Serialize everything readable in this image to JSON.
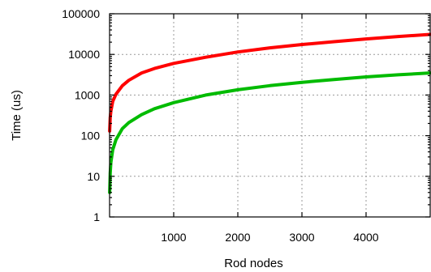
{
  "chart_data": {
    "type": "line",
    "title": "",
    "xlabel": "Rod nodes",
    "ylabel": "Time (us)",
    "xlim": [
      0,
      5000
    ],
    "ylim": [
      1,
      100000
    ],
    "yscale": "log",
    "grid": true,
    "legend": "none",
    "x_ticks": [
      1000,
      2000,
      3000,
      4000
    ],
    "x_tick_labels": [
      "1000",
      "2000",
      "3000",
      "4000"
    ],
    "y_ticks": [
      1,
      10,
      100,
      1000,
      10000,
      100000
    ],
    "y_tick_labels": [
      "1",
      "10",
      "100",
      "1000",
      "10000",
      "100000"
    ],
    "series": [
      {
        "color": "#ff0000",
        "x": [
          1,
          10,
          20,
          50,
          100,
          200,
          300,
          500,
          700,
          1000,
          1500,
          2000,
          2500,
          3000,
          3500,
          4000,
          4500,
          5000
        ],
        "values": [
          130,
          280,
          400,
          700,
          1050,
          1700,
          2300,
          3500,
          4500,
          6000,
          8500,
          11500,
          14500,
          17500,
          20500,
          24000,
          27500,
          31000
        ]
      },
      {
        "color": "#00bb00",
        "x": [
          1,
          10,
          20,
          50,
          100,
          200,
          300,
          500,
          700,
          1000,
          1500,
          2000,
          2500,
          3000,
          3500,
          4000,
          4500,
          5000
        ],
        "values": [
          4,
          12,
          22,
          45,
          80,
          150,
          210,
          330,
          460,
          650,
          1000,
          1350,
          1700,
          2050,
          2400,
          2800,
          3150,
          3500
        ]
      }
    ]
  }
}
